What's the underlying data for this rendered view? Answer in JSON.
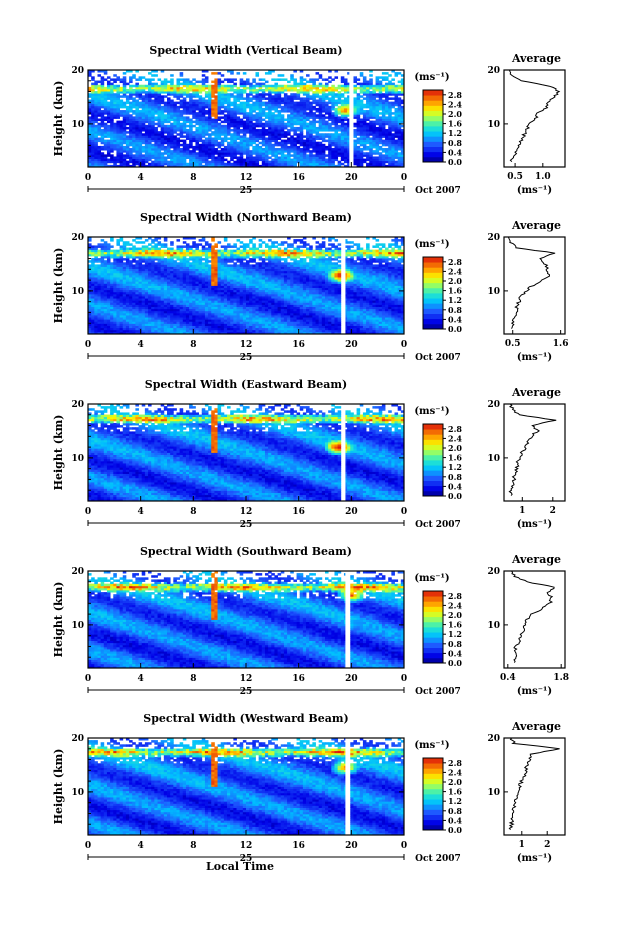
{
  "chart_data": [
    {
      "type": "heatmap",
      "title": "Spectral Width (Vertical Beam)",
      "ylabel": "Height (km)",
      "yticks": [
        "20",
        "10"
      ],
      "x_ticks": [
        "0",
        "4",
        "8",
        "12",
        "16",
        "20",
        "0"
      ],
      "x_range_hours": [
        0,
        24
      ],
      "y_range_km": [
        2,
        20
      ],
      "date_tick": "25",
      "date_label": "Oct 2007",
      "colorbar": {
        "unit": "(ms⁻¹)",
        "ticks": [
          "2.8",
          "2.4",
          "2.0",
          "1.6",
          "1.2",
          "0.8",
          "0.4",
          "0.0"
        ],
        "range": [
          0,
          3.0
        ]
      },
      "features": {
        "gap_hour": 20.0,
        "spike_hour": 9.6,
        "layer_km": 16.5,
        "hot_core_hour": 19.5,
        "hot_core_km": 12.5
      },
      "average": {
        "title": "Average",
        "xlabel": "(ms⁻¹)",
        "xticks": [
          "0.5",
          "1.0"
        ],
        "xtick_values": [
          0.5,
          1.0
        ],
        "xlim": [
          0.3,
          1.4
        ],
        "yticks": [
          "20",
          "10"
        ],
        "profile_km": [
          3,
          4,
          5,
          6,
          7,
          8,
          9,
          10,
          11,
          12,
          13,
          14,
          15,
          16,
          17,
          18,
          19,
          20
        ],
        "profile_ms": [
          0.42,
          0.47,
          0.52,
          0.56,
          0.62,
          0.66,
          0.71,
          0.77,
          0.86,
          0.92,
          1.05,
          1.1,
          1.22,
          1.28,
          1.15,
          0.6,
          0.44,
          0.4
        ]
      }
    },
    {
      "type": "heatmap",
      "title": "Spectral Width (Northward Beam)",
      "ylabel": "Height (km)",
      "yticks": [
        "20",
        "10"
      ],
      "x_ticks": [
        "0",
        "4",
        "8",
        "12",
        "16",
        "20",
        "0"
      ],
      "x_range_hours": [
        0,
        24
      ],
      "y_range_km": [
        2,
        20
      ],
      "date_tick": "25",
      "date_label": "Oct 2007",
      "colorbar": {
        "unit": "(ms⁻¹)",
        "ticks": [
          "2.8",
          "2.4",
          "2.0",
          "1.6",
          "1.2",
          "0.8",
          "0.4",
          "0.0"
        ],
        "range": [
          0,
          3.0
        ]
      },
      "features": {
        "gap_hour": 19.4,
        "spike_hour": 9.6,
        "layer_km": 17.0,
        "hot_core_hour": 19.2,
        "hot_core_km": 12.8
      },
      "average": {
        "title": "Average",
        "xlabel": "(ms⁻¹)",
        "xticks": [
          "0.5",
          "1.6"
        ],
        "xtick_values": [
          0.5,
          1.6
        ],
        "xlim": [
          0.3,
          1.7
        ],
        "yticks": [
          "20",
          "10"
        ],
        "profile_km": [
          3,
          4,
          5,
          6,
          7,
          8,
          9,
          10,
          11,
          12,
          13,
          14,
          15,
          16,
          17,
          18,
          19,
          20
        ],
        "profile_ms": [
          0.45,
          0.5,
          0.55,
          0.58,
          0.6,
          0.64,
          0.7,
          0.8,
          0.95,
          1.2,
          1.35,
          1.3,
          1.25,
          1.1,
          1.45,
          0.6,
          0.45,
          0.4
        ]
      }
    },
    {
      "type": "heatmap",
      "title": "Spectral Width (Eastward Beam)",
      "ylabel": "Height (km)",
      "yticks": [
        "20",
        "10"
      ],
      "x_ticks": [
        "0",
        "4",
        "8",
        "12",
        "16",
        "20",
        "0"
      ],
      "x_range_hours": [
        0,
        24
      ],
      "y_range_km": [
        2,
        20
      ],
      "date_tick": "25",
      "date_label": "Oct 2007",
      "colorbar": {
        "unit": "(ms⁻¹)",
        "ticks": [
          "2.8",
          "2.4",
          "2.0",
          "1.6",
          "1.2",
          "0.8",
          "0.4",
          "0.0"
        ],
        "range": [
          0,
          3.0
        ]
      },
      "features": {
        "gap_hour": 19.4,
        "spike_hour": 9.6,
        "layer_km": 17.2,
        "hot_core_hour": 19.0,
        "hot_core_km": 12.0
      },
      "average": {
        "title": "Average",
        "xlabel": "(ms⁻¹)",
        "xticks": [
          "1",
          "2"
        ],
        "xtick_values": [
          1,
          2
        ],
        "xlim": [
          0.4,
          2.4
        ],
        "yticks": [
          "20",
          "10"
        ],
        "profile_km": [
          3,
          4,
          5,
          6,
          7,
          8,
          9,
          10,
          11,
          12,
          13,
          14,
          15,
          16,
          17,
          18,
          19,
          20
        ],
        "profile_ms": [
          0.6,
          0.65,
          0.7,
          0.72,
          0.75,
          0.8,
          0.85,
          0.9,
          1.0,
          1.1,
          1.2,
          1.3,
          1.5,
          1.3,
          2.1,
          0.9,
          0.7,
          0.6
        ]
      }
    },
    {
      "type": "heatmap",
      "title": "Spectral Width (Southward Beam)",
      "ylabel": "Height (km)",
      "yticks": [
        "20",
        "10"
      ],
      "x_ticks": [
        "0",
        "4",
        "8",
        "12",
        "16",
        "20",
        "0"
      ],
      "x_range_hours": [
        0,
        24
      ],
      "y_range_km": [
        2,
        20
      ],
      "date_tick": "25",
      "date_label": "Oct 2007",
      "colorbar": {
        "unit": "(ms⁻¹)",
        "ticks": [
          "2.8",
          "2.4",
          "2.0",
          "1.6",
          "1.2",
          "0.8",
          "0.4",
          "0.0"
        ],
        "range": [
          0,
          3.0
        ]
      },
      "features": {
        "gap_hour": 19.7,
        "spike_hour": 9.6,
        "layer_km": 17.0,
        "hot_core_hour": 20.0,
        "hot_core_km": 15.5
      },
      "average": {
        "title": "Average",
        "xlabel": "(ms⁻¹)",
        "xticks": [
          "0.4",
          "1.8"
        ],
        "xtick_values": [
          0.4,
          1.8
        ],
        "xlim": [
          0.3,
          1.9
        ],
        "yticks": [
          "20",
          "10"
        ],
        "profile_km": [
          3,
          4,
          5,
          6,
          7,
          8,
          9,
          10,
          11,
          12,
          13,
          14,
          15,
          16,
          17,
          18,
          19,
          20
        ],
        "profile_ms": [
          0.55,
          0.6,
          0.58,
          0.62,
          0.7,
          0.75,
          0.8,
          0.85,
          0.9,
          1.0,
          1.3,
          1.5,
          1.55,
          1.45,
          1.6,
          0.9,
          0.6,
          0.5
        ]
      }
    },
    {
      "type": "heatmap",
      "title": "Spectral Width (Westward Beam)",
      "ylabel": "Height (km)",
      "yticks": [
        "20",
        "10"
      ],
      "x_ticks": [
        "0",
        "4",
        "8",
        "12",
        "16",
        "20",
        "0"
      ],
      "x_range_hours": [
        0,
        24
      ],
      "y_range_km": [
        2,
        20
      ],
      "date_tick": "25",
      "date_label": "Oct 2007",
      "xlabel": "Local Time",
      "colorbar": {
        "unit": "(ms⁻¹)",
        "ticks": [
          "2.8",
          "2.4",
          "2.0",
          "1.6",
          "1.2",
          "0.8",
          "0.4",
          "0.0"
        ],
        "range": [
          0,
          3.0
        ]
      },
      "features": {
        "gap_hour": 19.7,
        "spike_hour": 9.6,
        "layer_km": 17.4,
        "hot_core_hour": 19.5,
        "hot_core_km": 14.5
      },
      "average": {
        "title": "Average",
        "xlabel": "(ms⁻¹)",
        "xticks": [
          "1",
          "2"
        ],
        "xtick_values": [
          1,
          2
        ],
        "xlim": [
          0.3,
          2.7
        ],
        "yticks": [
          "20",
          "10"
        ],
        "profile_km": [
          3,
          4,
          5,
          6,
          7,
          8,
          9,
          10,
          11,
          12,
          13,
          14,
          15,
          16,
          17,
          18,
          19,
          20
        ],
        "profile_ms": [
          0.55,
          0.6,
          0.62,
          0.65,
          0.7,
          0.72,
          0.78,
          0.82,
          0.9,
          1.0,
          1.1,
          1.15,
          1.2,
          1.3,
          1.35,
          2.5,
          0.7,
          0.6
        ]
      }
    }
  ]
}
